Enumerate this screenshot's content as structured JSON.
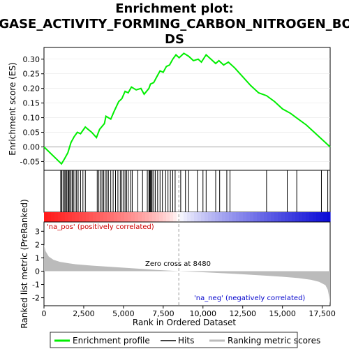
{
  "chart_data": {
    "type": "line",
    "title_lines": [
      "Enrichment plot:",
      "LIGASE_ACTIVITY_FORMING_CARBON_NITROGEN_BON",
      "DS"
    ],
    "xlabel": "Rank in Ordered Dataset",
    "ylabel_top": "Enrichment score (ES)",
    "ylabel_bottom": "Ranked list metric (PreRanked)",
    "xlim": [
      0,
      18000
    ],
    "x_ticks": [
      0,
      2500,
      5000,
      7500,
      10000,
      12500,
      15000,
      17500
    ],
    "x_tick_labels": [
      "0",
      "2,500",
      "5,000",
      "7,500",
      "10,000",
      "12,500",
      "15,000",
      "17,500"
    ],
    "es_ylim": [
      -0.08,
      0.34
    ],
    "es_ticks": [
      -0.05,
      0.0,
      0.05,
      0.1,
      0.15,
      0.2,
      0.25,
      0.3
    ],
    "es_tick_labels": [
      "-0.05",
      "0.00",
      "0.05",
      "0.10",
      "0.15",
      "0.20",
      "0.25",
      "0.30"
    ],
    "metric_ylim": [
      -2.6,
      3.7
    ],
    "metric_ticks": [
      3,
      2,
      1,
      0,
      -1,
      -2
    ],
    "metric_tick_labels": [
      "3",
      "2",
      "1",
      "0",
      "-1",
      "-2"
    ],
    "zero_cross": 8480,
    "zero_cross_label": "Zero cross at 8480",
    "pos_label": "'na_pos' (positively correlated)",
    "neg_label": "'na_neg' (negatively correlated)",
    "legend": [
      "Enrichment profile",
      "Hits",
      "Ranking metric scores"
    ],
    "colors": {
      "es_line": "#00ee00",
      "pos_label": "#cc0000",
      "neg_label": "#0000cc",
      "metric_fill": "#bbbbbb",
      "hits": "#000000"
    },
    "es_points": [
      [
        0,
        0.0
      ],
      [
        1100,
        -0.058
      ],
      [
        1300,
        -0.04
      ],
      [
        1500,
        -0.02
      ],
      [
        1700,
        0.015
      ],
      [
        1900,
        0.035
      ],
      [
        2100,
        0.05
      ],
      [
        2300,
        0.045
      ],
      [
        2600,
        0.068
      ],
      [
        3000,
        0.05
      ],
      [
        3300,
        0.032
      ],
      [
        3500,
        0.06
      ],
      [
        3800,
        0.08
      ],
      [
        3900,
        0.105
      ],
      [
        4200,
        0.095
      ],
      [
        4400,
        0.12
      ],
      [
        4700,
        0.155
      ],
      [
        4900,
        0.165
      ],
      [
        5100,
        0.19
      ],
      [
        5300,
        0.185
      ],
      [
        5500,
        0.205
      ],
      [
        5800,
        0.195
      ],
      [
        6100,
        0.2
      ],
      [
        6300,
        0.18
      ],
      [
        6600,
        0.2
      ],
      [
        6700,
        0.215
      ],
      [
        6900,
        0.22
      ],
      [
        7100,
        0.24
      ],
      [
        7300,
        0.26
      ],
      [
        7500,
        0.255
      ],
      [
        7700,
        0.275
      ],
      [
        7900,
        0.28
      ],
      [
        8100,
        0.3
      ],
      [
        8300,
        0.315
      ],
      [
        8500,
        0.305
      ],
      [
        8800,
        0.32
      ],
      [
        9100,
        0.31
      ],
      [
        9400,
        0.295
      ],
      [
        9700,
        0.3
      ],
      [
        9900,
        0.29
      ],
      [
        10200,
        0.315
      ],
      [
        10500,
        0.3
      ],
      [
        10800,
        0.285
      ],
      [
        11000,
        0.295
      ],
      [
        11300,
        0.28
      ],
      [
        11600,
        0.29
      ],
      [
        12000,
        0.27
      ],
      [
        12500,
        0.24
      ],
      [
        13000,
        0.21
      ],
      [
        13500,
        0.185
      ],
      [
        14000,
        0.175
      ],
      [
        14500,
        0.155
      ],
      [
        15000,
        0.13
      ],
      [
        15500,
        0.115
      ],
      [
        16000,
        0.095
      ],
      [
        16500,
        0.075
      ],
      [
        17000,
        0.05
      ],
      [
        17500,
        0.025
      ],
      [
        18000,
        0.0
      ]
    ],
    "hits": [
      1050,
      1120,
      1200,
      1280,
      1350,
      1420,
      1500,
      1560,
      1620,
      1700,
      1780,
      1850,
      1950,
      2050,
      2150,
      2300,
      2450,
      2600,
      3350,
      3450,
      3550,
      3650,
      3750,
      3850,
      3950,
      4050,
      4200,
      4350,
      4500,
      4650,
      4800,
      4900,
      5000,
      5100,
      5200,
      5300,
      5450,
      5550,
      5900,
      6200,
      6500,
      6600,
      6650,
      6700,
      6750,
      6800,
      6900,
      7000,
      7150,
      7300,
      7450,
      7650,
      7800,
      7950,
      8100,
      8250,
      8600,
      8900,
      9100,
      9650,
      10000,
      10200,
      10800,
      11050,
      11500,
      11700,
      14000,
      15300,
      15900,
      17450,
      17850
    ],
    "metric_curve": [
      [
        0,
        2.0
      ],
      [
        100,
        1.5
      ],
      [
        300,
        1.1
      ],
      [
        600,
        0.85
      ],
      [
        1000,
        0.7
      ],
      [
        1500,
        0.6
      ],
      [
        2000,
        0.52
      ],
      [
        3000,
        0.42
      ],
      [
        4000,
        0.34
      ],
      [
        5000,
        0.26
      ],
      [
        6000,
        0.18
      ],
      [
        7000,
        0.1
      ],
      [
        8480,
        0.0
      ],
      [
        10000,
        -0.08
      ],
      [
        11000,
        -0.14
      ],
      [
        12000,
        -0.2
      ],
      [
        13000,
        -0.27
      ],
      [
        14000,
        -0.34
      ],
      [
        15000,
        -0.42
      ],
      [
        16000,
        -0.52
      ],
      [
        16800,
        -0.65
      ],
      [
        17300,
        -0.8
      ],
      [
        17700,
        -1.05
      ],
      [
        17850,
        -1.4
      ],
      [
        17950,
        -2.0
      ],
      [
        18000,
        -2.45
      ]
    ]
  }
}
